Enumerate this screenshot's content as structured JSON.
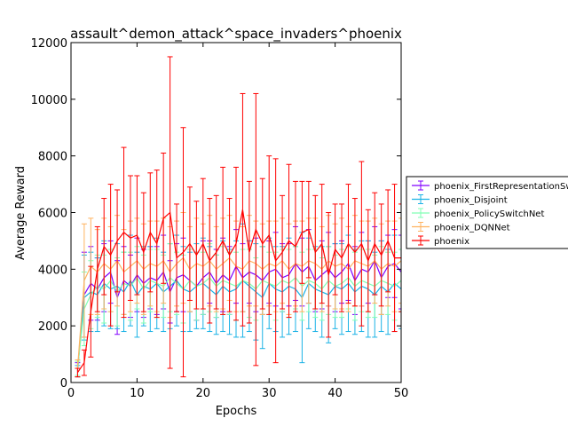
{
  "chart_data": {
    "type": "line",
    "title": "assault^demon_attack^space_invaders^phoenix",
    "xlabel": "Epochs",
    "ylabel": "Average Reward",
    "xlim": [
      0,
      50
    ],
    "ylim": [
      0,
      12000
    ],
    "xticks": [
      "0",
      "10",
      "20",
      "30",
      "40",
      "50"
    ],
    "yticks": [
      "0",
      "2000",
      "4000",
      "6000",
      "8000",
      "10000",
      "12000"
    ],
    "grid": false,
    "legend_position": "right",
    "x": [
      1,
      2,
      3,
      4,
      5,
      6,
      7,
      8,
      9,
      10,
      11,
      12,
      13,
      14,
      15,
      16,
      17,
      18,
      19,
      20,
      21,
      22,
      23,
      24,
      25,
      26,
      27,
      28,
      29,
      30,
      31,
      32,
      33,
      34,
      35,
      36,
      37,
      38,
      39,
      40,
      41,
      42,
      43,
      44,
      45,
      46,
      47,
      48,
      49,
      50
    ],
    "series": [
      {
        "name": "phoenix_FirstRepresentationSwitchNet",
        "color": "#8000ff",
        "values": [
          450,
          3100,
          3500,
          3300,
          3700,
          3900,
          3000,
          3600,
          3400,
          3800,
          3500,
          3700,
          3600,
          3900,
          3200,
          3700,
          3800,
          3600,
          3400,
          3700,
          3900,
          3500,
          3800,
          3600,
          4100,
          3700,
          3900,
          3800,
          3600,
          3900,
          4000,
          3700,
          3800,
          4200,
          3900,
          4100,
          3600,
          3800,
          4000,
          3700,
          3900,
          4200,
          3600,
          4000,
          3900,
          4300,
          3700,
          4100,
          4200,
          3900
        ],
        "errors": [
          250,
          1500,
          1300,
          1100,
          1200,
          1100,
          1300,
          1200,
          1100,
          1300,
          1200,
          1100,
          1200,
          1300,
          1100,
          1200,
          1300,
          1100,
          1200,
          1300,
          1100,
          1200,
          1300,
          1200,
          1300,
          1200,
          1100,
          1300,
          1200,
          1100,
          1300,
          1200,
          1100,
          1300,
          1200,
          1300,
          1100,
          1200,
          1300,
          1200,
          1100,
          1300,
          1200,
          1300,
          1100,
          1200,
          1300,
          1100,
          1200,
          1300
        ]
      },
      {
        "name": "phoenix_Disjoint",
        "color": "#1ab2e6",
        "values": [
          400,
          3000,
          3200,
          3100,
          3500,
          3300,
          3400,
          3200,
          3600,
          3100,
          3400,
          3300,
          3500,
          3200,
          3400,
          3600,
          3300,
          3200,
          3400,
          3500,
          3300,
          3100,
          3400,
          3200,
          3300,
          3600,
          3400,
          3200,
          3000,
          3500,
          3300,
          3200,
          3400,
          3300,
          3000,
          3500,
          3300,
          3200,
          3100,
          3400,
          3300,
          3500,
          3200,
          3400,
          3300,
          3100,
          3400,
          3200,
          3500,
          3300
        ],
        "errors": [
          200,
          1500,
          1400,
          1300,
          1500,
          1400,
          1500,
          1400,
          1600,
          1500,
          1400,
          1500,
          1600,
          1400,
          1500,
          1600,
          1500,
          1400,
          1500,
          1600,
          1500,
          1400,
          1600,
          1500,
          1700,
          2000,
          1600,
          1700,
          1800,
          1600,
          1500,
          1600,
          1700,
          1500,
          2300,
          1600,
          1500,
          1600,
          1700,
          1500,
          1600,
          1700,
          1500,
          1600,
          1700,
          1500,
          1600,
          1500,
          1700,
          1400
        ]
      },
      {
        "name": "phoenix_PolicySwitchNet",
        "color": "#80ffb4",
        "values": [
          500,
          2600,
          3100,
          3400,
          3300,
          3600,
          3200,
          3500,
          3400,
          3700,
          3300,
          3600,
          3500,
          3400,
          3700,
          3500,
          3300,
          3600,
          3400,
          3500,
          3700,
          3400,
          3600,
          3500,
          3400,
          3600,
          3500,
          3300,
          3600,
          3500,
          3400,
          3600,
          3500,
          3700,
          3400,
          3600,
          3500,
          3300,
          3600,
          3400,
          3500,
          3700,
          3400,
          3600,
          3500,
          3400,
          3600,
          3500,
          3400,
          3600
        ],
        "errors": [
          250,
          1300,
          1200,
          1100,
          1200,
          1100,
          1200,
          1100,
          1200,
          1100,
          1200,
          1100,
          1200,
          1100,
          1200,
          1100,
          1200,
          1100,
          1200,
          1100,
          1200,
          1100,
          1200,
          1100,
          1200,
          1100,
          1200,
          1100,
          1200,
          1100,
          1200,
          1100,
          1200,
          1100,
          1200,
          1100,
          1200,
          1100,
          1200,
          1100,
          1200,
          1100,
          1200,
          1100,
          1200,
          1100,
          1200,
          1100,
          1200,
          1100
        ]
      },
      {
        "name": "phoenix_DQNNet",
        "color": "#ffb360",
        "values": [
          500,
          3600,
          4100,
          3900,
          4200,
          4000,
          4300,
          3900,
          4100,
          4300,
          4000,
          4200,
          4100,
          4300,
          3900,
          4200,
          4400,
          4000,
          4200,
          4100,
          4300,
          4000,
          4200,
          4400,
          4100,
          4000,
          4300,
          4200,
          4000,
          4200,
          4100,
          4300,
          4000,
          4200,
          4100,
          4300,
          4200,
          4000,
          4300,
          4100,
          4200,
          4000,
          4300,
          4200,
          4100,
          4300,
          4000,
          4200,
          4100,
          4300
        ],
        "errors": [
          300,
          2000,
          1700,
          1500,
          1600,
          1500,
          1600,
          1500,
          1600,
          1500,
          1600,
          1500,
          1600,
          1500,
          1600,
          1500,
          1600,
          1500,
          1600,
          1500,
          1600,
          1500,
          1600,
          1500,
          1600,
          1500,
          1600,
          1500,
          1600,
          1500,
          1600,
          1500,
          1600,
          1500,
          1600,
          1500,
          1600,
          1500,
          1600,
          1500,
          1600,
          1500,
          1600,
          1500,
          1600,
          1500,
          1600,
          1500,
          1600,
          1500
        ]
      },
      {
        "name": "phoenix",
        "color": "#ff0000",
        "values": [
          350,
          700,
          2500,
          4000,
          4800,
          4500,
          5000,
          5300,
          5100,
          5200,
          4600,
          5300,
          4900,
          5800,
          6000,
          4400,
          4600,
          4900,
          4500,
          4900,
          4300,
          4600,
          5000,
          4500,
          4900,
          6100,
          4600,
          5400,
          4900,
          5200,
          4300,
          4600,
          5000,
          4800,
          5300,
          5400,
          4600,
          4900,
          3800,
          4700,
          4400,
          4900,
          4600,
          4900,
          4300,
          4900,
          4500,
          5000,
          4400,
          4400
        ],
        "errors": [
          150,
          450,
          1600,
          1500,
          1700,
          2500,
          1800,
          3000,
          2200,
          2100,
          2100,
          2100,
          2600,
          2300,
          5500,
          1900,
          4400,
          2000,
          1900,
          2300,
          2200,
          2000,
          2600,
          2000,
          2700,
          4100,
          2500,
          4800,
          2300,
          2800,
          3600,
          2000,
          2700,
          2300,
          1800,
          1700,
          2000,
          2100,
          2200,
          1600,
          1900,
          2100,
          1900,
          2900,
          1800,
          1800,
          1800,
          1800,
          2600,
          1900
        ]
      }
    ]
  }
}
